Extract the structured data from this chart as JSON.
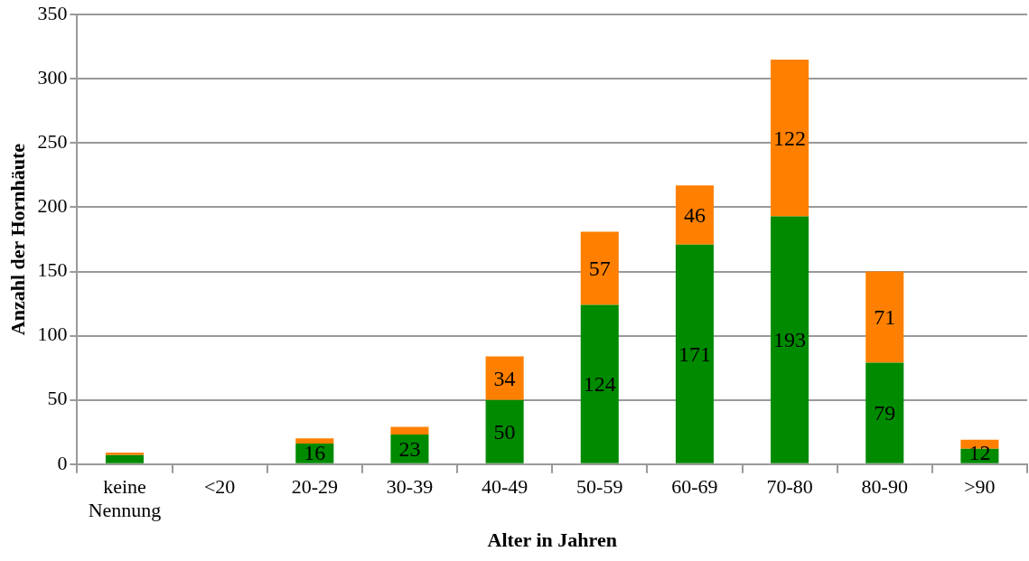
{
  "chart_data": {
    "type": "bar",
    "stacked": true,
    "xlabel": "Alter in Jahren",
    "ylabel": "Anzahl der Hornhäute",
    "categories": [
      "keine Nennung",
      "<20",
      "20-29",
      "30-39",
      "40-49",
      "50-59",
      "60-69",
      "70-80",
      "80-90",
      ">90"
    ],
    "series": [
      {
        "color": "#008a00",
        "values": [
          7,
          0,
          16,
          23,
          50,
          124,
          171,
          193,
          79,
          12
        ],
        "value_labels": [
          null,
          null,
          "16",
          "23",
          "50",
          "124",
          "171",
          "193",
          "79",
          "12"
        ]
      },
      {
        "color": "#ff8000",
        "values": [
          2,
          0,
          4,
          6,
          34,
          57,
          46,
          122,
          71,
          7
        ],
        "value_labels": [
          null,
          null,
          null,
          null,
          "34",
          "57",
          "46",
          "122",
          "71",
          null
        ]
      }
    ],
    "ylim": [
      0,
      350
    ],
    "yticks": [
      0,
      50,
      100,
      150,
      200,
      250,
      300,
      350
    ],
    "grid": "y",
    "legend": false
  }
}
